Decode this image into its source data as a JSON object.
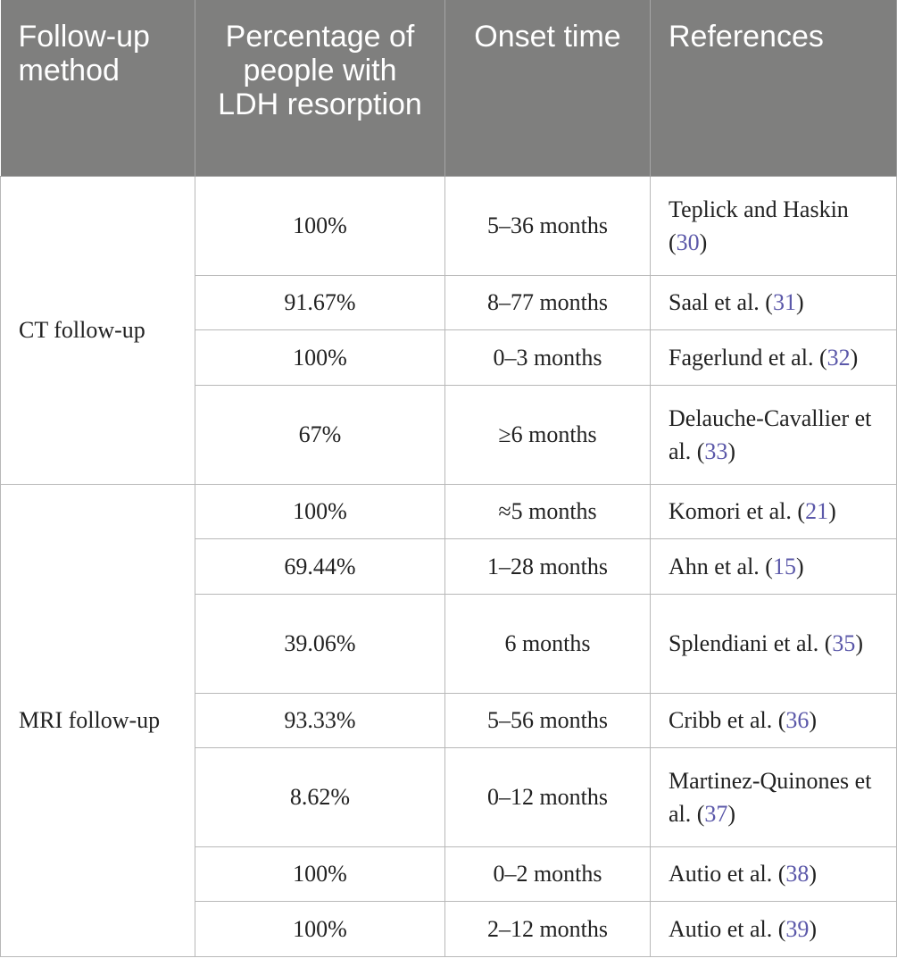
{
  "headers": {
    "method": "Follow-up method",
    "percentage": "Percentage of people with LDH resorption",
    "onset": "Onset time",
    "references": "References"
  },
  "groups": {
    "ct": "CT follow-up",
    "mri": "MRI follow-up"
  },
  "rows": [
    {
      "percentage": "100%",
      "onset": "5–36 months",
      "ref_text": "Teplick and Haskin (",
      "ref_num": "30",
      "ref_close": ")"
    },
    {
      "percentage": "91.67%",
      "onset": "8–77 months",
      "ref_text": "Saal et al. (",
      "ref_num": "31",
      "ref_close": ")"
    },
    {
      "percentage": "100%",
      "onset": "0–3 months",
      "ref_text": "Fagerlund et al. (",
      "ref_num": "32",
      "ref_close": ")"
    },
    {
      "percentage": "67%",
      "onset": "≥6 months",
      "ref_text": "Delauche-Cavallier et al. (",
      "ref_num": "33",
      "ref_close": ")"
    },
    {
      "percentage": "100%",
      "onset": "≈5 months",
      "ref_text": "Komori et al. (",
      "ref_num": "21",
      "ref_close": ")"
    },
    {
      "percentage": "69.44%",
      "onset": "1–28 months",
      "ref_text": "Ahn et al. (",
      "ref_num": "15",
      "ref_close": ")"
    },
    {
      "percentage": "39.06%",
      "onset": "6 months",
      "ref_text": "Splendiani et al. (",
      "ref_num": "35",
      "ref_close": ")"
    },
    {
      "percentage": "93.33%",
      "onset": "5–56 months",
      "ref_text": "Cribb et al. (",
      "ref_num": "36",
      "ref_close": ")"
    },
    {
      "percentage": "8.62%",
      "onset": "0–12 months",
      "ref_text": "Martinez-Quinones et al. (",
      "ref_num": "37",
      "ref_close": ")"
    },
    {
      "percentage": "100%",
      "onset": "0–2 months",
      "ref_text": "Autio et al. (",
      "ref_num": "38",
      "ref_close": ")"
    },
    {
      "percentage": "100%",
      "onset": "2–12 months",
      "ref_text": "Autio et al. (",
      "ref_num": "39",
      "ref_close": ")"
    }
  ]
}
